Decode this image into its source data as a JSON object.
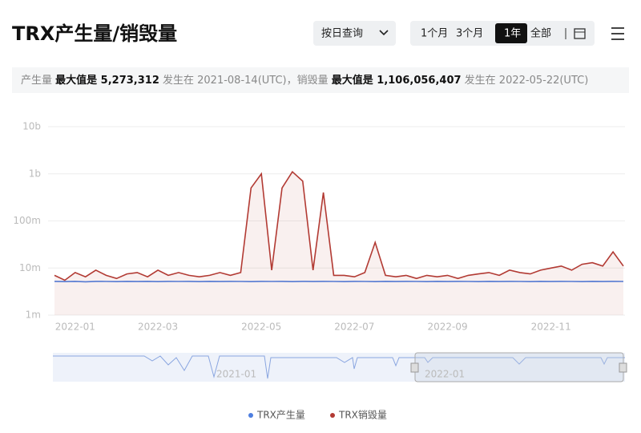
{
  "header": {
    "title": "TRX产生量/销毁量"
  },
  "controls": {
    "query_mode": "按日查询",
    "ranges": [
      "1个月",
      "3个月",
      "1年",
      "全部"
    ],
    "active_range": 2
  },
  "summary": {
    "segments": [
      {
        "text": "产生量 ",
        "bold": false
      },
      {
        "text": "最大值是 5,273,312",
        "bold": true
      },
      {
        "text": " 发生在 2021-08-14(UTC)，",
        "bold": false
      },
      {
        "text": "销毁量 ",
        "bold": false
      },
      {
        "text": "最大值是 1,106,056,407",
        "bold": true
      },
      {
        "text": " 发生在 2022-05-22(UTC)",
        "bold": false
      }
    ]
  },
  "navigator": {
    "labels": [
      "2021-01",
      "2022-01"
    ]
  },
  "chart_data": {
    "type": "line",
    "log_scale": true,
    "grid": true,
    "legend": "bottom",
    "categories": [
      null,
      null,
      "2022-01",
      null,
      null,
      null,
      null,
      null,
      null,
      null,
      "2022-03",
      null,
      null,
      null,
      null,
      null,
      null,
      null,
      null,
      null,
      "2022-05",
      null,
      null,
      null,
      null,
      null,
      null,
      null,
      null,
      "2022-07",
      null,
      null,
      null,
      null,
      null,
      null,
      null,
      null,
      "2022-09",
      null,
      null,
      null,
      null,
      null,
      null,
      null,
      null,
      null,
      "2022-11",
      null,
      null,
      null,
      null,
      null,
      null,
      null
    ],
    "ylim": [
      1000000,
      10000000000
    ],
    "yticks": [
      {
        "value": 1000000,
        "label": "1m"
      },
      {
        "value": 10000000,
        "label": "10m"
      },
      {
        "value": 100000000,
        "label": "100m"
      },
      {
        "value": 1000000000,
        "label": "1b"
      },
      {
        "value": 10000000000,
        "label": "10b"
      }
    ],
    "series": [
      {
        "name": "TRX产生量",
        "color": "#4e7fe0",
        "fill": false,
        "values": [
          5200000,
          5150000,
          5200000,
          5100000,
          5200000,
          5180000,
          5150000,
          5200000,
          5170000,
          5200000,
          5150000,
          5200000,
          5180000,
          5200000,
          5150000,
          5200000,
          5170000,
          5200000,
          5180000,
          5150000,
          5200000,
          5180000,
          5200000,
          5150000,
          5200000,
          5170000,
          5200000,
          5180000,
          5150000,
          5200000,
          5180000,
          5150000,
          5200000,
          5170000,
          5200000,
          5180000,
          5150000,
          5200000,
          5170000,
          5200000,
          5180000,
          5150000,
          5200000,
          5170000,
          5200000,
          5180000,
          5150000,
          5200000,
          5170000,
          5200000,
          5180000,
          5150000,
          5200000,
          5170000,
          5200000,
          5180000
        ]
      },
      {
        "name": "TRX销毁量",
        "color": "#b23a33",
        "fill": true,
        "values": [
          7000000,
          5500000,
          8000000,
          6500000,
          9000000,
          7000000,
          6000000,
          7500000,
          8000000,
          6500000,
          9000000,
          7000000,
          8000000,
          7000000,
          6500000,
          7000000,
          8000000,
          7000000,
          8000000,
          500000000,
          1000000000,
          9000000,
          500000000,
          1106056407,
          700000000,
          9000000,
          400000000,
          7000000,
          7000000,
          6500000,
          8000000,
          35000000,
          7000000,
          6500000,
          7000000,
          6000000,
          7000000,
          6500000,
          7000000,
          6000000,
          7000000,
          7500000,
          8000000,
          7000000,
          9000000,
          8000000,
          7500000,
          9000000,
          10000000,
          11000000,
          9000000,
          12000000,
          13000000,
          11000000,
          22000000,
          11000000
        ]
      }
    ]
  }
}
